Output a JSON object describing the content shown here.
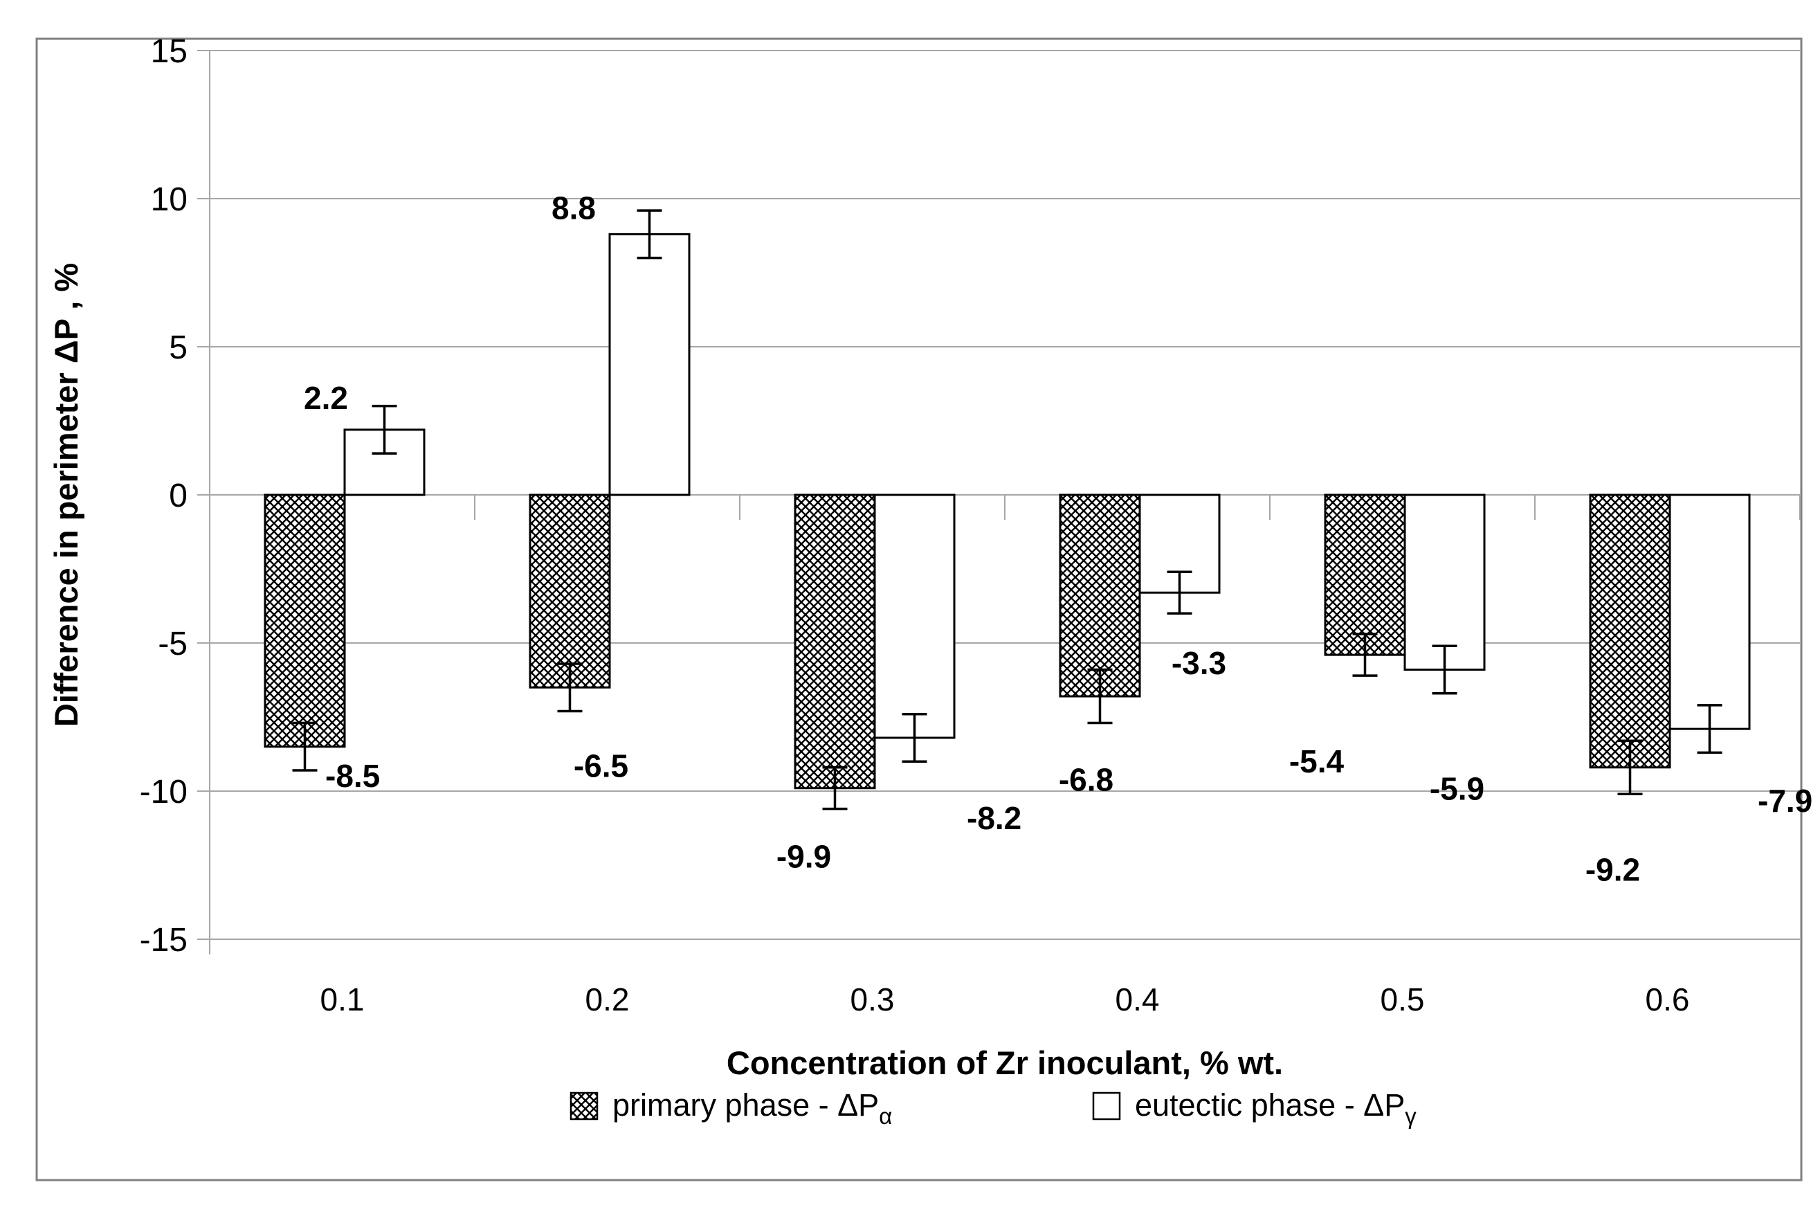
{
  "figure": {
    "background": "#ffffff",
    "border_color": "#808080"
  },
  "chart_data": {
    "type": "bar",
    "title": "",
    "xlabel": "Concentration of Zr inoculant, % wt.",
    "ylabel": "Difference in perimeter ΔP , %",
    "categories": [
      "0.1",
      "0.2",
      "0.3",
      "0.4",
      "0.5",
      "0.6"
    ],
    "series": [
      {
        "name": "primary phase - ΔPα",
        "label_main": "primary phase - ΔP",
        "label_sub": "α",
        "fill": "crosshatch",
        "values": [
          -8.5,
          -6.5,
          -9.9,
          -6.8,
          -5.4,
          -9.2
        ],
        "errors": [
          0.8,
          0.8,
          0.7,
          0.9,
          0.7,
          0.9
        ],
        "data_labels": [
          "-8.5",
          "-6.5",
          "-9.9",
          "-6.8",
          "-5.4",
          "-9.2"
        ]
      },
      {
        "name": "eutectic phase - ΔPγ",
        "label_main": "eutectic phase - ΔP",
        "label_sub": "γ",
        "fill": "white",
        "values": [
          2.2,
          8.8,
          -8.2,
          -3.3,
          -5.9,
          -7.9
        ],
        "errors": [
          0.8,
          0.8,
          0.8,
          0.7,
          0.8,
          0.8
        ],
        "data_labels": [
          "2.2",
          "8.8",
          "-8.2",
          "-3.3",
          "-5.9",
          "-7.9"
        ]
      }
    ],
    "ylim": [
      -15,
      15
    ],
    "yticks": [
      "15",
      "10",
      "5",
      "0",
      "-5",
      "-10",
      "-15"
    ],
    "ytick_values": [
      15,
      10,
      5,
      0,
      -5,
      -10,
      -15
    ],
    "grid": true,
    "legend_position": "bottom",
    "colors": {
      "grid": "#a6a6a6",
      "axis": "#a6a6a6",
      "bar_stroke": "#000000",
      "bar_fill_eutectic": "#ffffff",
      "text": "#000000",
      "border": "#808080",
      "background": "#ffffff"
    }
  }
}
